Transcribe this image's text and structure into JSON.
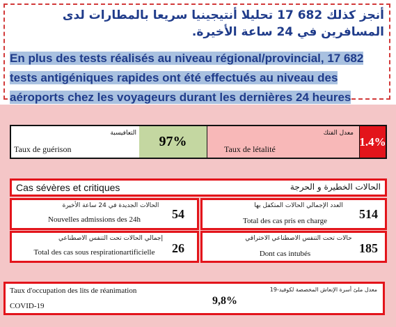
{
  "top": {
    "arabic": "أنجز كذلك 682 17 تحليلا أنتيجينيا سريعا بالمطارات لدى المسافرين في 24 ساعة الأخيرة.",
    "french": "En plus des tests réalisés au niveau régional/provincial, 17 682 tests antigéniques rapides ont été effectués au niveau des aéroports chez les voyageurs durant les dernières 24 heures"
  },
  "recovery": {
    "label_fr": "Taux de guérison",
    "label_ar": "التعافيسبة",
    "value": "97%"
  },
  "lethality": {
    "label_fr": "Taux de létalité",
    "label_ar": "معدل الفتك",
    "value": "1.4%"
  },
  "severe": {
    "title_fr": "Cas sévères et critiques",
    "title_ar": "الحالات الخطيرة و الحرجة",
    "new_admissions": {
      "label_ar": "الحالات الجديدة في 24 ساعة الأخيرة",
      "label_fr": "Nouvelles admissions des 24h",
      "value": "54"
    },
    "total_in_charge": {
      "label_ar": "العدد الإجمالي الحالات المتكفل بها",
      "label_fr": "Total des cas pris en charge",
      "value": "514"
    },
    "respiration": {
      "label_ar": "إجمالي الحالات تحت التنفس الاصطناعي",
      "label_fr": "Total des cas sous respirationartificielle",
      "value": "26"
    },
    "intubated": {
      "label_ar": "حالات تحت التنفس الاصطناعي الاختراقي",
      "label_fr": "Dont cas intubés",
      "value": "185"
    }
  },
  "occupancy": {
    "label_fr_1": "Taux d'occupation des lits de réanimation",
    "label_fr_2": "COVID-19",
    "label_ar": "معدل ملئ أسرة الإنعاش المخصصة لكوفيد-19",
    "value": "9,8%"
  }
}
